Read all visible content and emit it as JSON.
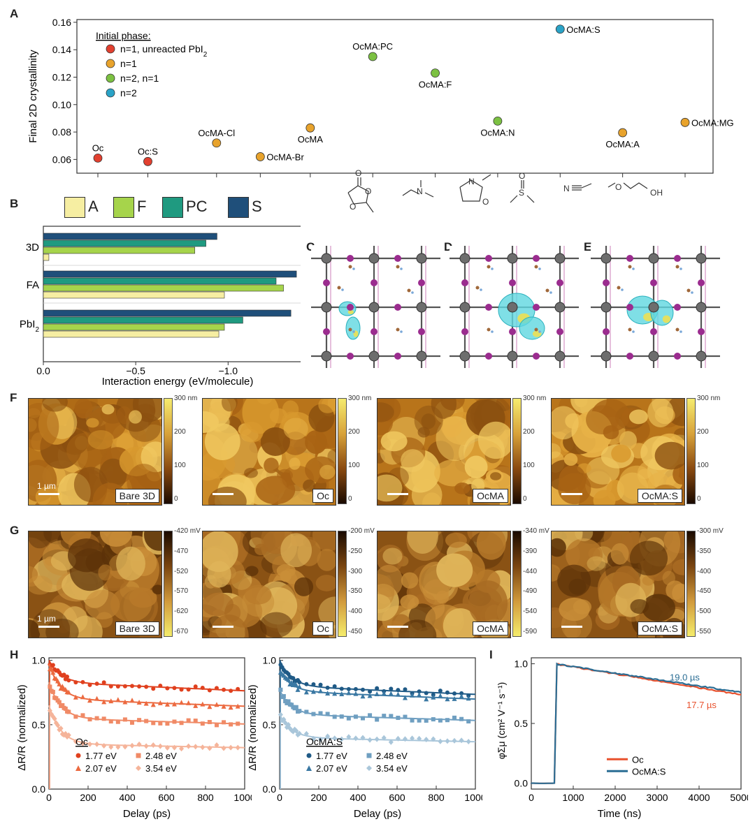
{
  "panels": {
    "A": "A",
    "B": "B",
    "C": "C",
    "D": "D",
    "E": "E",
    "F": "F",
    "G": "G",
    "H": "H",
    "I": "I"
  },
  "panelA": {
    "chart_data": {
      "type": "scatter",
      "ylabel": "Final 2D crystallinity",
      "ylim": [
        0.05,
        0.162
      ],
      "yticks": [
        0.06,
        0.08,
        0.1,
        0.12,
        0.14,
        0.16
      ],
      "ytick_labels": [
        "0.06",
        "0.08",
        "0.10",
        "0.12",
        "0.14",
        "0.16"
      ],
      "legend_title": "Initial phase:",
      "legend": [
        {
          "label": "n=1, unreacted PbI",
          "sub": "2",
          "color": "#e2402f"
        },
        {
          "label": "n=1",
          "sub": "",
          "color": "#e8a32c"
        },
        {
          "label": "n=2, n=1",
          "sub": "",
          "color": "#7cc142"
        },
        {
          "label": "n=2",
          "sub": "",
          "color": "#2aa3c7"
        }
      ],
      "points": [
        {
          "label": "Oc",
          "pos": 0.6,
          "y": 0.061,
          "color": "#e2402f"
        },
        {
          "label": "Oc:S",
          "pos": 1.4,
          "y": 0.0585,
          "color": "#e2402f"
        },
        {
          "label": "OcMA-Cl",
          "pos": 2.5,
          "y": 0.072,
          "color": "#e8a32c"
        },
        {
          "label": "OcMA-Br",
          "pos": 3.2,
          "y": 0.062,
          "color": "#e8a32c"
        },
        {
          "label": "OcMA",
          "pos": 4.0,
          "y": 0.083,
          "color": "#e8a32c"
        },
        {
          "label": "OcMA:PC",
          "pos": 5.0,
          "y": 0.135,
          "color": "#7cc142"
        },
        {
          "label": "OcMA:F",
          "pos": 6.0,
          "y": 0.123,
          "color": "#7cc142"
        },
        {
          "label": "OcMA:N",
          "pos": 7.0,
          "y": 0.088,
          "color": "#7cc142"
        },
        {
          "label": "OcMA:S",
          "pos": 8.0,
          "y": 0.155,
          "color": "#2aa3c7"
        },
        {
          "label": "OcMA:A",
          "pos": 9.0,
          "y": 0.0795,
          "color": "#e8a32c"
        },
        {
          "label": "OcMA:MG",
          "pos": 10.0,
          "y": 0.087,
          "color": "#e8a32c"
        }
      ]
    },
    "molecule_atoms": [
      "O",
      "O",
      "O",
      "N",
      "N",
      "O",
      "S",
      "O",
      "N",
      "O",
      "OH"
    ]
  },
  "panelB": {
    "chart_data": {
      "type": "bar",
      "orientation": "horizontal",
      "categories": [
        "3D",
        "FA",
        "PbI2"
      ],
      "category_labels": [
        {
          "main": "3D",
          "sub": ""
        },
        {
          "main": "FA",
          "sub": ""
        },
        {
          "main": "PbI",
          "sub": "2"
        }
      ],
      "series": [
        {
          "name": "A",
          "color": "#f6eea2",
          "values": [
            -0.03,
            -0.98,
            -0.95
          ]
        },
        {
          "name": "F",
          "color": "#a6d44b",
          "values": [
            -0.82,
            -1.3,
            -0.98
          ]
        },
        {
          "name": "PC",
          "color": "#1f9a80",
          "values": [
            -0.88,
            -1.26,
            -1.08
          ]
        },
        {
          "name": "S",
          "color": "#1f4f7a",
          "values": [
            -0.94,
            -1.37,
            -1.34
          ]
        }
      ],
      "xlabel": "Interaction energy (eV/molecule)",
      "xlim": [
        0,
        -1.4
      ],
      "xticks": [
        0,
        -0.5,
        -1.0
      ],
      "xtick_labels": [
        "0.0",
        "−0.5",
        "−1.0"
      ]
    }
  },
  "panelF": {
    "tiles": [
      {
        "tag": "Bare 3D",
        "scale": "1 µm",
        "cbar": [
          "300 nm",
          "200",
          "100",
          "0"
        ]
      },
      {
        "tag": "Oc",
        "scale": "",
        "cbar": [
          "300 nm",
          "200",
          "100",
          "0"
        ]
      },
      {
        "tag": "OcMA",
        "scale": "",
        "cbar": [
          "300 nm",
          "200",
          "100",
          "0"
        ]
      },
      {
        "tag": "OcMA:S",
        "scale": "",
        "cbar": [
          "300 nm",
          "200",
          "100",
          "0"
        ]
      }
    ]
  },
  "panelG": {
    "tiles": [
      {
        "tag": "Bare 3D",
        "scale": "1 µm",
        "cbar": [
          "-420 mV",
          "-470",
          "-520",
          "-570",
          "-620",
          "-670"
        ]
      },
      {
        "tag": "Oc",
        "scale": "",
        "cbar": [
          "-200 mV",
          "-250",
          "-300",
          "-350",
          "-400",
          "-450"
        ]
      },
      {
        "tag": "OcMA",
        "scale": "",
        "cbar": [
          "-340 mV",
          "-390",
          "-440",
          "-490",
          "-540",
          "-590"
        ]
      },
      {
        "tag": "OcMA:S",
        "scale": "",
        "cbar": [
          "-300 mV",
          "-350",
          "-400",
          "-450",
          "-500",
          "-550"
        ]
      }
    ]
  },
  "panelH": {
    "chart_data": [
      {
        "type": "scatter",
        "title": "Oc",
        "xlabel": "Delay (ps)",
        "ylabel": "ΔR/R (normalized)",
        "xlim": [
          0,
          1000
        ],
        "ylim": [
          0,
          1.02
        ],
        "xticks": [
          0,
          200,
          400,
          600,
          800,
          1000
        ],
        "yticks": [
          0,
          0.5,
          1.0
        ],
        "ytick_labels": [
          "0.0",
          "0.5",
          "1.0"
        ],
        "series": [
          {
            "name": "1.77 eV",
            "marker": "circle",
            "color": "#e0401e",
            "plateau": 0.83,
            "initial": 1.0
          },
          {
            "name": "2.07 eV",
            "marker": "triangle",
            "color": "#ec6a40",
            "plateau": 0.7,
            "initial": 0.97
          },
          {
            "name": "2.48 eV",
            "marker": "square",
            "color": "#f08a66",
            "plateau": 0.55,
            "initial": 0.83
          },
          {
            "name": "3.54 eV",
            "marker": "diamond",
            "color": "#f5b49a",
            "plateau": 0.35,
            "initial": 0.65
          }
        ]
      },
      {
        "type": "scatter",
        "title": "OcMA:S",
        "xlabel": "Delay (ps)",
        "ylabel": "ΔR/R (normalized)",
        "xlim": [
          0,
          1000
        ],
        "ylim": [
          0,
          1.02
        ],
        "xticks": [
          0,
          200,
          400,
          600,
          800,
          1000
        ],
        "yticks": [
          0,
          0.5,
          1.0
        ],
        "ytick_labels": [
          "0.0",
          "0.5",
          "1.0"
        ],
        "series": [
          {
            "name": "1.77 eV",
            "marker": "circle",
            "color": "#1f5a86",
            "plateau": 0.8,
            "initial": 1.0
          },
          {
            "name": "2.07 eV",
            "marker": "triangle",
            "color": "#3a78a3",
            "plateau": 0.76,
            "initial": 0.92
          },
          {
            "name": "2.48 eV",
            "marker": "square",
            "color": "#6f9fc1",
            "plateau": 0.58,
            "initial": 0.77
          },
          {
            "name": "3.54 eV",
            "marker": "diamond",
            "color": "#a9c6da",
            "plateau": 0.4,
            "initial": 0.58
          }
        ]
      }
    ]
  },
  "panelI": {
    "chart_data": {
      "type": "line",
      "xlabel": "Time (ns)",
      "ylabel": "φΣμ (cm² V⁻¹ s⁻¹)",
      "xlim": [
        0,
        5000
      ],
      "ylim": [
        -0.05,
        1.05
      ],
      "xticks": [
        0,
        1000,
        2000,
        3000,
        4000,
        5000
      ],
      "yticks": [
        0,
        0.5,
        1.0
      ],
      "ytick_labels": [
        "0.0",
        "0.5",
        "1.0"
      ],
      "series": [
        {
          "name": "Oc",
          "color": "#e8512d",
          "lifetime": "17.7 µs",
          "onset": 550,
          "end_value": 0.74
        },
        {
          "name": "OcMA:S",
          "color": "#2a6d94",
          "lifetime": "19.0 µs",
          "onset": 550,
          "end_value": 0.76
        }
      ]
    }
  }
}
